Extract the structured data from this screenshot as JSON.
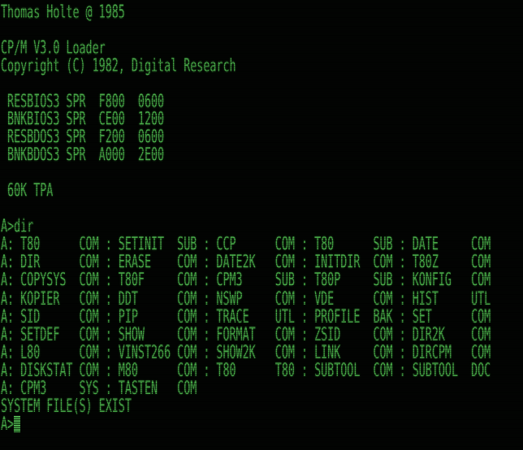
{
  "terminal": {
    "colors": {
      "foreground": "#48ab48",
      "background": "#000000",
      "cursor": "#55b955"
    },
    "banner": "Thomas Holte @ 1985",
    "loader": {
      "title": "CP/M V3.0 Loader",
      "copyright": "Copyright (C) 1982, Digital Research",
      "modules": [
        {
          "name": "RESBIOS3",
          "type": "SPR",
          "address": "F800",
          "length": "0600"
        },
        {
          "name": "BNKBIOS3",
          "type": "SPR",
          "address": "CE00",
          "length": "1200"
        },
        {
          "name": "RESBDOS3",
          "type": "SPR",
          "address": "F200",
          "length": "0600"
        },
        {
          "name": "BNKBDOS3",
          "type": "SPR",
          "address": "A000",
          "length": "2E00"
        }
      ],
      "tpa": "60K TPA"
    },
    "shell": {
      "prompt": "A>",
      "command": "dir",
      "drive": "A",
      "status": "SYSTEM FILE(S) EXIST",
      "files": [
        "T80.COM",
        "SETINIT.SUB",
        "CCP.COM",
        "T80.SUB",
        "DATE.COM",
        "DIR.COM",
        "ERASE.COM",
        "DATE2K.COM",
        "INITDIR.COM",
        "T80Z.COM",
        "COPYSYS.COM",
        "T80F.COM",
        "CPM3.SUB",
        "T80P.SUB",
        "KONFIG.COM",
        "KOPIER.COM",
        "DDT.COM",
        "NSWP.COM",
        "VDE.COM",
        "HIST.UTL",
        "SID.COM",
        "PIP.COM",
        "TRACE.UTL",
        "PROFILE.BAK",
        "SET.COM",
        "SETDEF.COM",
        "SHOW.COM",
        "FORMAT.COM",
        "ZSID.COM",
        "DIR2K.COM",
        "L80.COM",
        "VINST266.COM",
        "SHOW2K.COM",
        "LINK.COM",
        "DIRCPM.COM",
        "DISKSTAT.COM",
        "M80.COM",
        "T80.T80",
        "SUBTOOL.COM",
        "SUBTOOL.DOC",
        "CPM3.SYS",
        "TASTEN.COM"
      ]
    },
    "lines": [
      "Thomas Holte @ 1985",
      "",
      "CP/M V3.0 Loader",
      "Copyright (C) 1982, Digital Research",
      "",
      " RESBIOS3 SPR  F800  0600",
      " BNKBIOS3 SPR  CE00  1200",
      " RESBDOS3 SPR  F200  0600",
      " BNKBDOS3 SPR  A000  2E00",
      "",
      " 60K TPA",
      "",
      "A>dir",
      "A: T80      COM : SETINIT  SUB : CCP      COM : T80      SUB : DATE     COM",
      "A: DIR      COM : ERASE    COM : DATE2K   COM : INITDIR  COM : T80Z     COM",
      "A: COPYSYS  COM : T80F     COM : CPM3     SUB : T80P     SUB : KONFIG   COM",
      "A: KOPIER   COM : DDT      COM : NSWP     COM : VDE      COM : HIST     UTL",
      "A: SID      COM : PIP      COM : TRACE    UTL : PROFILE  BAK : SET      COM",
      "A: SETDEF   COM : SHOW     COM : FORMAT   COM : ZSID     COM : DIR2K    COM",
      "A: L80      COM : VINST266 COM : SHOW2K   COM : LINK     COM : DIRCPM   COM",
      "A: DISKSTAT COM : M80      COM : T80      T80 : SUBTOOL  COM : SUBTOOL  DOC",
      "A: CPM3     SYS : TASTEN   COM",
      "SYSTEM FILE(S) EXIST",
      "A>"
    ]
  }
}
